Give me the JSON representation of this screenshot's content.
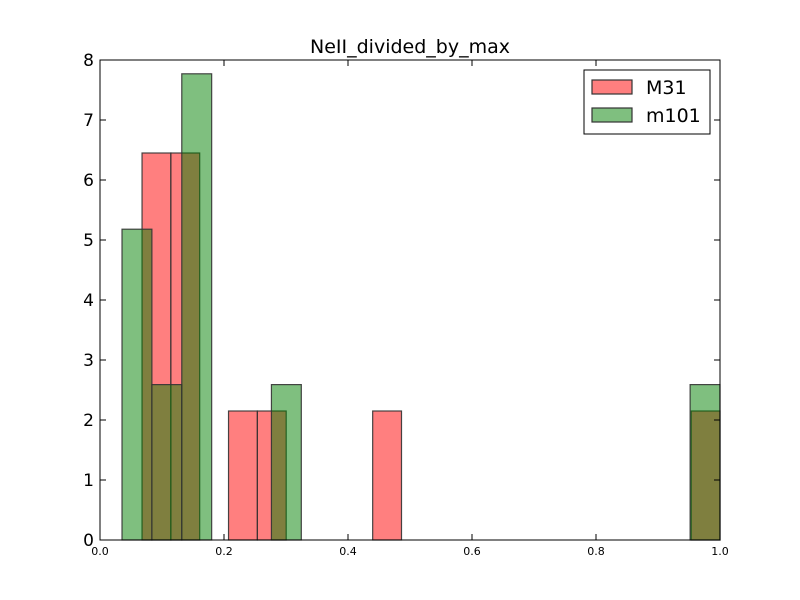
{
  "chart_data": {
    "type": "bar",
    "title": "NeII_divided_by_max",
    "xlabel": "",
    "ylabel": "",
    "xlim": [
      0.0,
      1.0
    ],
    "ylim": [
      0,
      8
    ],
    "x_ticks": [
      "0.0",
      "0.2",
      "0.4",
      "0.6",
      "0.8",
      "1.0"
    ],
    "y_ticks": [
      "0",
      "1",
      "2",
      "3",
      "4",
      "5",
      "6",
      "7",
      "8"
    ],
    "grid": false,
    "legend_position": "top-right",
    "series": [
      {
        "name": "M31",
        "color": "#ff0000",
        "edge_color": "#333333",
        "bins": [
          {
            "x0": 0.0678,
            "x1": 0.1143,
            "value": 6.45
          },
          {
            "x0": 0.1143,
            "x1": 0.1608,
            "value": 6.45
          },
          {
            "x0": 0.2073,
            "x1": 0.2538,
            "value": 2.15
          },
          {
            "x0": 0.2538,
            "x1": 0.3003,
            "value": 2.15
          },
          {
            "x0": 0.4398,
            "x1": 0.4863,
            "value": 2.15
          },
          {
            "x0": 0.9535,
            "x1": 1.0,
            "value": 2.15
          }
        ]
      },
      {
        "name": "m101",
        "color": "#008000",
        "edge_color": "#333333",
        "bins": [
          {
            "x0": 0.0355,
            "x1": 0.0837,
            "value": 5.18
          },
          {
            "x0": 0.0837,
            "x1": 0.1319,
            "value": 2.59
          },
          {
            "x0": 0.1319,
            "x1": 0.1801,
            "value": 7.77
          },
          {
            "x0": 0.2765,
            "x1": 0.3247,
            "value": 2.59
          },
          {
            "x0": 0.9518,
            "x1": 1.0,
            "value": 2.59
          }
        ]
      }
    ]
  }
}
